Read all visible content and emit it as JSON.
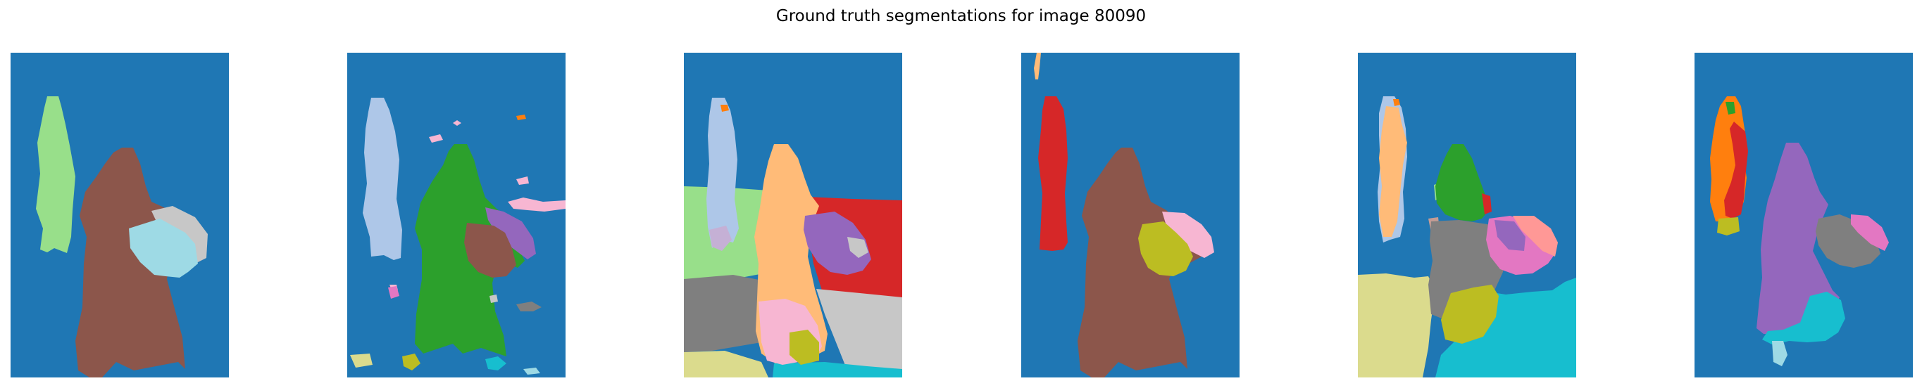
{
  "figure": {
    "title": "Ground truth segmentations for image 80090"
  },
  "palette": {
    "blue": "#1f77b4",
    "lightblue": "#aec7e8",
    "orange": "#ff7f0e",
    "peach": "#ffbb78",
    "green": "#2ca02c",
    "lightgreen": "#98df8a",
    "red": "#d62728",
    "pink": "#ff9896",
    "purple": "#9467bd",
    "lavender": "#c5b0d5",
    "brown": "#8c564b",
    "tan": "#c49c94",
    "magenta": "#e377c2",
    "lightpink": "#f7b6d2",
    "gray": "#7f7f7f",
    "lightgray": "#c7c7c7",
    "olive": "#bcbd22",
    "khaki": "#dbdb8d",
    "cyan": "#17becf",
    "lightcyan": "#9edae5"
  },
  "chart_data": {
    "type": "image-grid",
    "title": "Ground truth segmentations for image 80090",
    "panels": [
      {
        "index": 1,
        "segments": [
          "blue",
          "lightgreen",
          "brown",
          "lightgray",
          "lightcyan"
        ]
      },
      {
        "index": 2,
        "segments": [
          "blue",
          "lightblue",
          "green",
          "purple",
          "brown",
          "lightpink",
          "magenta",
          "khaki",
          "olive",
          "cyan"
        ]
      },
      {
        "index": 3,
        "segments": [
          "lightgreen",
          "blue",
          "red",
          "lightblue",
          "peach",
          "purple",
          "lavender",
          "gray",
          "lightgray",
          "lightpink",
          "olive",
          "khaki",
          "cyan"
        ]
      },
      {
        "index": 4,
        "segments": [
          "blue",
          "red",
          "brown",
          "lightpink",
          "olive",
          "peach"
        ]
      },
      {
        "index": 5,
        "segments": [
          "blue",
          "lightblue",
          "peach",
          "green",
          "lightgreen",
          "tan",
          "gray",
          "purple",
          "magenta",
          "pink",
          "red",
          "khaki",
          "olive",
          "cyan"
        ]
      },
      {
        "index": 6,
        "segments": [
          "blue",
          "orange",
          "green",
          "red",
          "olive",
          "purple",
          "gray",
          "magenta",
          "cyan",
          "lightcyan"
        ]
      }
    ],
    "axes": "off",
    "grid": false
  }
}
